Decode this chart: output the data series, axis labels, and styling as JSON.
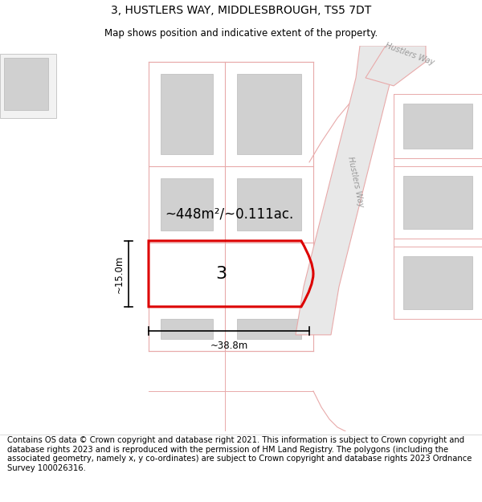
{
  "title": "3, HUSTLERS WAY, MIDDLESBROUGH, TS5 7DT",
  "subtitle": "Map shows position and indicative extent of the property.",
  "footer": "Contains OS data © Crown copyright and database right 2021. This information is subject to Crown copyright and database rights 2023 and is reproduced with the permission of HM Land Registry. The polygons (including the associated geometry, namely x, y co-ordinates) are subject to Crown copyright and database rights 2023 Ordnance Survey 100026316.",
  "area_label": "~448m²/~0.111ac.",
  "width_label": "~38.8m",
  "height_label": "~15.0m",
  "plot_number": "3",
  "bg_color": "#ffffff",
  "plot_edge": "#dd0000",
  "road_label": "Hustlers Way",
  "road_label2": "Hustlers Way",
  "road_gray": "#c8c8c8",
  "road_outline": "#e8aaaa",
  "plot_outline": "#f0b8b8",
  "bldg_gray": "#d0d0d0",
  "title_fontsize": 10,
  "subtitle_fontsize": 8.5,
  "footer_fontsize": 7.2,
  "annot_fontsize": 12,
  "dim_fontsize": 8.5,
  "plot_num_fontsize": 16
}
